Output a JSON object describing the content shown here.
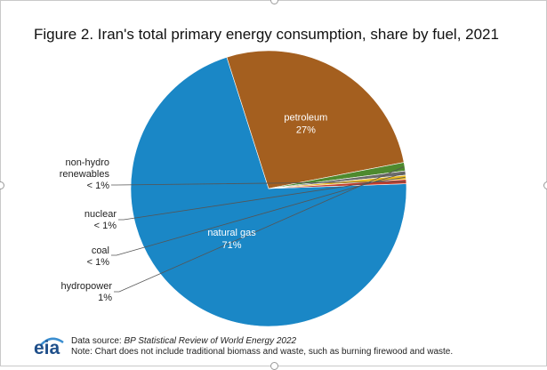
{
  "title": "Figure 2. Iran's total primary energy consumption, share by fuel, 2021",
  "chart_data": {
    "type": "pie",
    "title": "Figure 2. Iran's total primary energy consumption, share by fuel, 2021",
    "slices": [
      {
        "name": "natural gas",
        "label": "71%",
        "value": 71,
        "color": "#1a87c6"
      },
      {
        "name": "petroleum",
        "label": "27%",
        "value": 27,
        "color": "#a45f1f"
      },
      {
        "name": "hydropower",
        "label": "1%",
        "value": 1,
        "color": "#4e8a2e"
      },
      {
        "name": "coal",
        "label": "< 1%",
        "value": 0.5,
        "color": "#6b6b6b"
      },
      {
        "name": "nuclear",
        "label": "< 1%",
        "value": 0.5,
        "color": "#e9b91f"
      },
      {
        "name": "non-hydro renewables",
        "label": "< 1%",
        "value": 0.5,
        "color": "#c23b2b"
      }
    ],
    "side_labels": [
      {
        "slice": "non-hydro renewables",
        "lines": [
          "non-hydro",
          "renewables",
          "< 1%"
        ]
      },
      {
        "slice": "nuclear",
        "lines": [
          "nuclear",
          "< 1%"
        ]
      },
      {
        "slice": "coal",
        "lines": [
          "coal",
          "< 1%"
        ]
      },
      {
        "slice": "hydropower",
        "lines": [
          "hydropower",
          "1%"
        ]
      }
    ]
  },
  "footer": {
    "logo": "eia",
    "source_prefix": "Data source: ",
    "source_title": "BP Statistical Review of World Energy 2022",
    "note": "Note: Chart does not include traditional biomass and waste, such as burning firewood and waste."
  }
}
